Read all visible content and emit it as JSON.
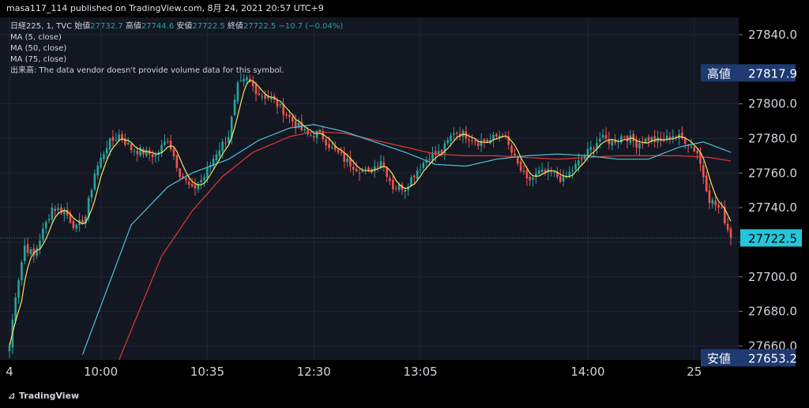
{
  "header": {
    "publish_text": "masa117_114 published on TradingView.com, 8月 24, 2021 20:57 UTC+9"
  },
  "legend": {
    "symbol": "日経225, 1, TVC",
    "open_label": "始値",
    "open_value": "27732.7",
    "high_label": "高値",
    "high_value": "27744.6",
    "low_label": "安値",
    "low_value": "27722.5",
    "close_label": "終値",
    "close_value": "27722.5",
    "change": "−10.7 (−0.04%)",
    "ma1": "MA (5, close)",
    "ma2": "MA (50, close)",
    "ma3": "MA (75, close)",
    "volume_note": "出来高: The data vendor doesn't provide volume data for this symbol."
  },
  "footer": {
    "brand": "TradingView"
  },
  "colors": {
    "up": "#26a69a",
    "down": "#ef5350",
    "ma5": "#f6e05e",
    "ma50": "#4fc3d9",
    "ma75": "#e53935",
    "bg": "#131722",
    "tag": "#1e3a70",
    "last_price": "#26c6da"
  },
  "chart_data": {
    "type": "candlestick",
    "ylim": [
      27652,
      27850
    ],
    "y_ticks": [
      27660,
      27680,
      27700,
      27720,
      27740,
      27760,
      27780,
      27800,
      27840
    ],
    "x_ticks": [
      {
        "label": "4",
        "index": 0
      },
      {
        "label": "10:00",
        "index": 30
      },
      {
        "label": "10:35",
        "index": 65
      },
      {
        "label": "12:30",
        "index": 100
      },
      {
        "label": "13:05",
        "index": 135
      },
      {
        "label": "14:00",
        "index": 190
      },
      {
        "label": "25",
        "index": 225
      }
    ],
    "tags": [
      {
        "label": "高値",
        "value": "27817.9",
        "y": 27817.9
      },
      {
        "label": "安値",
        "value": "27653.2",
        "y": 27653.2
      }
    ],
    "last_price": {
      "value": "27722.5",
      "y": 27722.5
    },
    "close_anchors": [
      [
        0,
        27660
      ],
      [
        2,
        27690
      ],
      [
        5,
        27718
      ],
      [
        8,
        27712
      ],
      [
        10,
        27722
      ],
      [
        14,
        27740
      ],
      [
        18,
        27738
      ],
      [
        22,
        27728
      ],
      [
        25,
        27735
      ],
      [
        28,
        27760
      ],
      [
        32,
        27776
      ],
      [
        36,
        27782
      ],
      [
        40,
        27774
      ],
      [
        44,
        27772
      ],
      [
        48,
        27770
      ],
      [
        52,
        27780
      ],
      [
        56,
        27760
      ],
      [
        60,
        27750
      ],
      [
        64,
        27758
      ],
      [
        68,
        27772
      ],
      [
        72,
        27782
      ],
      [
        75,
        27810
      ],
      [
        78,
        27814
      ],
      [
        82,
        27806
      ],
      [
        86,
        27803
      ],
      [
        90,
        27796
      ],
      [
        94,
        27788
      ],
      [
        98,
        27782
      ],
      [
        102,
        27783
      ],
      [
        106,
        27774
      ],
      [
        110,
        27768
      ],
      [
        114,
        27763
      ],
      [
        118,
        27760
      ],
      [
        122,
        27768
      ],
      [
        126,
        27752
      ],
      [
        130,
        27752
      ],
      [
        134,
        27762
      ],
      [
        138,
        27770
      ],
      [
        142,
        27772
      ],
      [
        146,
        27784
      ],
      [
        150,
        27782
      ],
      [
        154,
        27778
      ],
      [
        158,
        27779
      ],
      [
        162,
        27783
      ],
      [
        166,
        27768
      ],
      [
        170,
        27755
      ],
      [
        174,
        27760
      ],
      [
        178,
        27760
      ],
      [
        182,
        27756
      ],
      [
        186,
        27764
      ],
      [
        190,
        27772
      ],
      [
        194,
        27780
      ],
      [
        198,
        27778
      ],
      [
        202,
        27782
      ],
      [
        206,
        27777
      ],
      [
        210,
        27780
      ],
      [
        214,
        27778
      ],
      [
        218,
        27782
      ],
      [
        222,
        27779
      ],
      [
        226,
        27772
      ],
      [
        230,
        27745
      ],
      [
        234,
        27738
      ],
      [
        237,
        27722.5
      ]
    ],
    "ma50_anchors": [
      [
        24,
        27655
      ],
      [
        40,
        27730
      ],
      [
        52,
        27752
      ],
      [
        60,
        27760
      ],
      [
        72,
        27768
      ],
      [
        82,
        27779
      ],
      [
        92,
        27786
      ],
      [
        100,
        27788
      ],
      [
        110,
        27784
      ],
      [
        120,
        27778
      ],
      [
        130,
        27772
      ],
      [
        140,
        27765
      ],
      [
        150,
        27764
      ],
      [
        160,
        27768
      ],
      [
        170,
        27770
      ],
      [
        180,
        27771
      ],
      [
        190,
        27770
      ],
      [
        200,
        27768
      ],
      [
        210,
        27768
      ],
      [
        220,
        27775
      ],
      [
        228,
        27778
      ],
      [
        237,
        27772
      ]
    ],
    "ma75_anchors": [
      [
        36,
        27652
      ],
      [
        50,
        27712
      ],
      [
        60,
        27738
      ],
      [
        70,
        27758
      ],
      [
        80,
        27772
      ],
      [
        92,
        27781
      ],
      [
        100,
        27784
      ],
      [
        110,
        27783
      ],
      [
        120,
        27779
      ],
      [
        130,
        27775
      ],
      [
        140,
        27771
      ],
      [
        150,
        27770
      ],
      [
        160,
        27770
      ],
      [
        170,
        27769
      ],
      [
        180,
        27768
      ],
      [
        190,
        27769
      ],
      [
        200,
        27770
      ],
      [
        210,
        27770
      ],
      [
        220,
        27770
      ],
      [
        230,
        27769
      ],
      [
        237,
        27767
      ]
    ]
  }
}
